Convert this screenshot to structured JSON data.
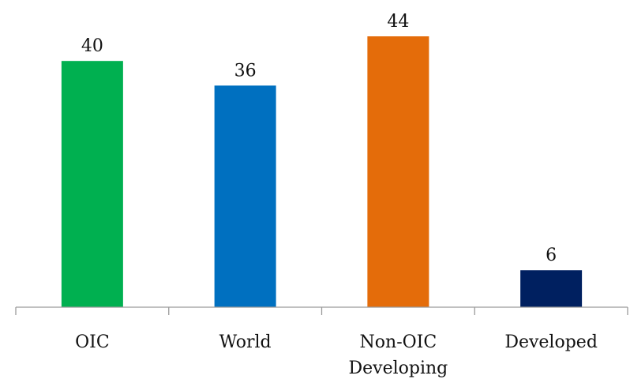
{
  "chart_data": {
    "type": "bar",
    "title": "",
    "xlabel": "",
    "ylabel": "",
    "ylim": [
      0,
      44
    ],
    "grid": false,
    "legend": "none",
    "categories": [
      [
        "OIC"
      ],
      [
        "World"
      ],
      [
        "Non-OIC",
        "Developing"
      ],
      [
        "Developed"
      ]
    ],
    "values": [
      40,
      36,
      44,
      6
    ],
    "value_labels": [
      "40",
      "36",
      "44",
      "6"
    ],
    "colors": [
      "#00b050",
      "#0070c0",
      "#e46c0a",
      "#002060"
    ],
    "axis_color": "#9a9a9a"
  }
}
